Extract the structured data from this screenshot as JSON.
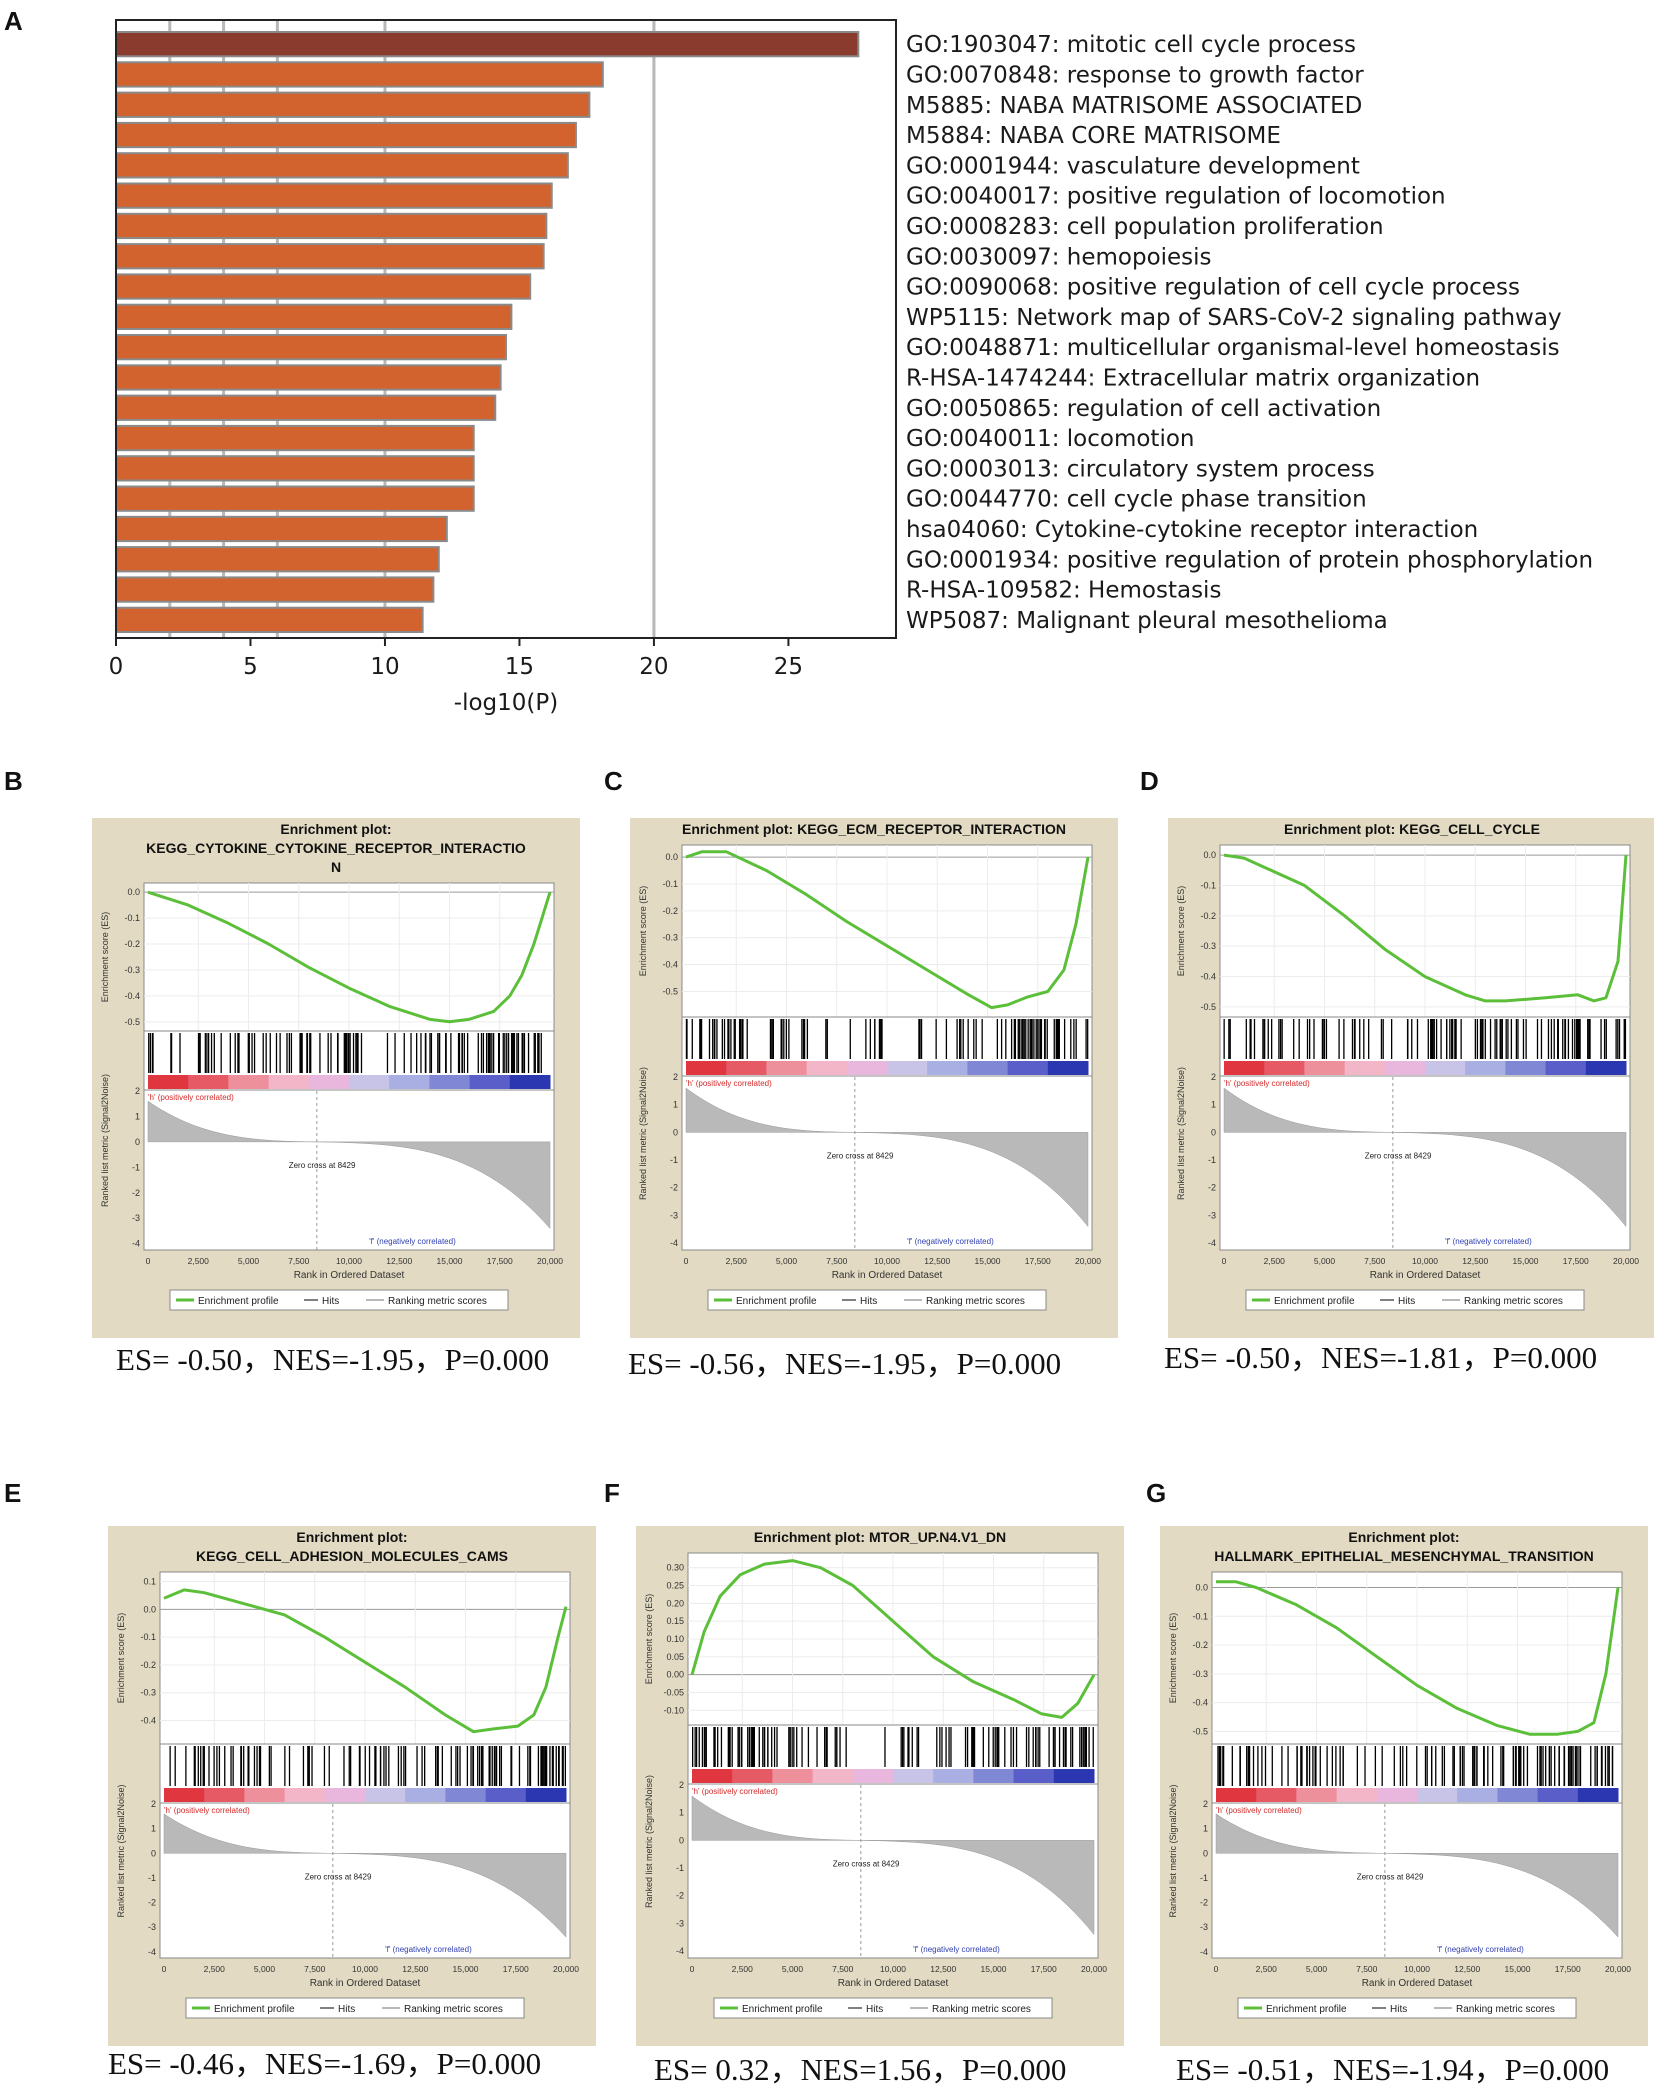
{
  "chart_data": [
    {
      "panel": "A",
      "type": "bar",
      "orientation": "horizontal",
      "xlabel": "-log10(P)",
      "xlim": [
        0,
        29
      ],
      "xticks": [
        0,
        5,
        10,
        15,
        20,
        25
      ],
      "grid_lines": [
        2,
        4,
        6,
        10,
        20
      ],
      "categories": [
        "GO:1903047: mitotic cell cycle process",
        "GO:0070848: response to growth factor",
        "M5885: NABA MATRISOME ASSOCIATED",
        "M5884: NABA CORE MATRISOME",
        "GO:0001944: vasculature development",
        "GO:0040017: positive regulation of locomotion",
        "GO:0008283: cell population proliferation",
        "GO:0030097: hemopoiesis",
        "GO:0090068: positive regulation of cell cycle process",
        "WP5115: Network map of SARS-CoV-2 signaling pathway",
        "GO:0048871: multicellular organismal-level homeostasis",
        "R-HSA-1474244: Extracellular matrix organization",
        "GO:0050865: regulation of cell activation",
        "GO:0040011: locomotion",
        "GO:0003013: circulatory system process",
        "GO:0044770: cell cycle phase transition",
        "hsa04060: Cytokine-cytokine receptor interaction",
        "GO:0001934: positive regulation of protein phosphorylation",
        "R-HSA-109582: Hemostasis",
        "WP5087: Malignant pleural mesothelioma"
      ],
      "values": [
        27.6,
        18.1,
        17.6,
        17.1,
        16.8,
        16.2,
        16.0,
        15.9,
        15.4,
        14.7,
        14.5,
        14.3,
        14.1,
        13.3,
        13.3,
        13.3,
        12.3,
        12.0,
        11.8,
        11.4
      ],
      "colors": {
        "top": "#8b3a2e",
        "rest": "#d2622e",
        "grid": "#b8b8b8"
      }
    },
    {
      "panel": "B",
      "type": "line",
      "title_line1": "Enrichment plot:",
      "title_line2": "KEGG_CYTOKINE_CYTOKINE_RECEPTOR_INTERACTIO",
      "title_line3": "N",
      "ylabel": "Enrichment score (ES)",
      "yticks": [
        "0.0",
        "-0.1",
        "-0.2",
        "-0.3",
        "-0.4",
        "-0.5"
      ],
      "ylim": [
        -0.52,
        0.02
      ],
      "es_curve": {
        "x": [
          0,
          0.1,
          0.2,
          0.3,
          0.4,
          0.5,
          0.6,
          0.7,
          0.75,
          0.8,
          0.86,
          0.9,
          0.93,
          0.96,
          0.98,
          1.0
        ],
        "y": [
          0.0,
          -0.05,
          -0.12,
          -0.2,
          -0.29,
          -0.37,
          -0.44,
          -0.49,
          -0.5,
          -0.49,
          -0.46,
          -0.4,
          -0.32,
          -0.2,
          -0.1,
          0.0
        ]
      },
      "hit_density": [
        0.3,
        0.7,
        0.5,
        0.8,
        0.4,
        0.6,
        0.9,
        1.0
      ],
      "pos_label": "'h' (positively correlated)",
      "neg_label": "'f' (negatively correlated)",
      "zero_cross": "Zero cross at 8429",
      "metric_ylabel": "Ranked list metric (Signal2Noise)",
      "metric_yticks": [
        "2",
        "1",
        "0",
        "-1",
        "-2",
        "-3",
        "-4"
      ],
      "xlabel": "Rank in Ordered Dataset",
      "xticks": [
        "0",
        "2,500",
        "5,000",
        "7,500",
        "10,000",
        "12,500",
        "15,000",
        "17,500",
        "20,000"
      ],
      "legend": [
        "Enrichment profile",
        "Hits",
        "Ranking metric scores"
      ],
      "stats": "ES= -0.50，NES=-1.95，P=0.000"
    },
    {
      "panel": "C",
      "type": "line",
      "title_line1": "Enrichment plot: KEGG_ECM_RECEPTOR_INTERACTION",
      "title_line2": "",
      "title_line3": "",
      "ylabel": "Enrichment score (ES)",
      "yticks": [
        "0.0",
        "-0.1",
        "-0.2",
        "-0.3",
        "-0.4",
        "-0.5"
      ],
      "ylim": [
        -0.58,
        0.03
      ],
      "es_curve": {
        "x": [
          0,
          0.04,
          0.1,
          0.2,
          0.3,
          0.4,
          0.5,
          0.6,
          0.7,
          0.76,
          0.8,
          0.85,
          0.9,
          0.94,
          0.97,
          1.0
        ],
        "y": [
          0.0,
          0.02,
          0.02,
          -0.05,
          -0.14,
          -0.24,
          -0.33,
          -0.42,
          -0.51,
          -0.56,
          -0.55,
          -0.52,
          -0.5,
          -0.42,
          -0.25,
          0.0
        ]
      },
      "hit_density": [
        0.8,
        0.6,
        0.3,
        0.5,
        0.2,
        0.4,
        0.9,
        1.0
      ],
      "pos_label": "'h' (positively correlated)",
      "neg_label": "'f' (negatively correlated)",
      "zero_cross": "Zero cross at 8429",
      "metric_ylabel": "Ranked list metric (Signal2Noise)",
      "metric_yticks": [
        "2",
        "1",
        "0",
        "-1",
        "-2",
        "-3",
        "-4"
      ],
      "xlabel": "Rank in Ordered Dataset",
      "xticks": [
        "0",
        "2,500",
        "5,000",
        "7,500",
        "10,000",
        "12,500",
        "15,000",
        "17,500",
        "20,000"
      ],
      "legend": [
        "Enrichment profile",
        "Hits",
        "Ranking metric scores"
      ],
      "stats": "ES= -0.56，NES=-1.95，P=0.000"
    },
    {
      "panel": "D",
      "type": "line",
      "title_line1": "Enrichment plot: KEGG_CELL_CYCLE",
      "title_line2": "",
      "title_line3": "",
      "ylabel": "Enrichment score (ES)",
      "yticks": [
        "0.0",
        "-0.1",
        "-0.2",
        "-0.3",
        "-0.4",
        "-0.5"
      ],
      "ylim": [
        -0.52,
        0.02
      ],
      "es_curve": {
        "x": [
          0,
          0.05,
          0.1,
          0.2,
          0.3,
          0.4,
          0.5,
          0.6,
          0.65,
          0.7,
          0.8,
          0.88,
          0.92,
          0.95,
          0.98,
          1.0
        ],
        "y": [
          0.0,
          -0.01,
          -0.04,
          -0.1,
          -0.2,
          -0.31,
          -0.4,
          -0.46,
          -0.48,
          -0.48,
          -0.47,
          -0.46,
          -0.48,
          -0.47,
          -0.35,
          0.0
        ]
      },
      "hit_density": [
        0.6,
        0.5,
        0.4,
        0.3,
        0.8,
        0.9,
        0.7,
        0.8
      ],
      "pos_label": "'h' (positively correlated)",
      "neg_label": "'f' (negatively correlated)",
      "zero_cross": "Zero cross at 8429",
      "metric_ylabel": "Ranked list metric (Signal2Noise)",
      "metric_yticks": [
        "2",
        "1",
        "0",
        "-1",
        "-2",
        "-3",
        "-4"
      ],
      "xlabel": "Rank in Ordered Dataset",
      "xticks": [
        "0",
        "2,500",
        "5,000",
        "7,500",
        "10,000",
        "12,500",
        "15,000",
        "17,500",
        "20,000"
      ],
      "legend": [
        "Enrichment profile",
        "Hits",
        "Ranking metric scores"
      ],
      "stats": "ES= -0.50，NES=-1.81，P=0.000"
    },
    {
      "panel": "E",
      "type": "line",
      "title_line1": "Enrichment plot:",
      "title_line2": "KEGG_CELL_ADHESION_MOLECULES_CAMS",
      "title_line3": "",
      "ylabel": "Enrichment score (ES)",
      "yticks": [
        "0.1",
        "0.0",
        "-0.1",
        "-0.2",
        "-0.3",
        "-0.4"
      ],
      "ylim": [
        -0.47,
        0.12
      ],
      "es_curve": {
        "x": [
          0,
          0.05,
          0.1,
          0.2,
          0.3,
          0.4,
          0.5,
          0.6,
          0.7,
          0.77,
          0.82,
          0.88,
          0.92,
          0.95,
          0.98,
          1.0
        ],
        "y": [
          0.04,
          0.07,
          0.06,
          0.02,
          -0.02,
          -0.1,
          -0.19,
          -0.28,
          -0.38,
          -0.44,
          -0.43,
          -0.42,
          -0.38,
          -0.28,
          -0.1,
          0.01
        ]
      },
      "hit_density": [
        0.5,
        0.7,
        0.4,
        0.3,
        0.6,
        0.5,
        0.9,
        1.0
      ],
      "pos_label": "'h' (positively correlated)",
      "neg_label": "'f' (negatively correlated)",
      "zero_cross": "Zero cross at 8429",
      "metric_ylabel": "Ranked list metric (Signal2Noise)",
      "metric_yticks": [
        "2",
        "1",
        "0",
        "-1",
        "-2",
        "-3",
        "-4"
      ],
      "xlabel": "Rank in Ordered Dataset",
      "xticks": [
        "0",
        "2,500",
        "5,000",
        "7,500",
        "10,000",
        "12,500",
        "15,000",
        "17,500",
        "20,000"
      ],
      "legend": [
        "Enrichment profile",
        "Hits",
        "Ranking metric scores"
      ],
      "stats": "ES= -0.46，NES=-1.69，P=0.000"
    },
    {
      "panel": "F",
      "type": "line",
      "title_line1": "Enrichment plot: MTOR_UP.N4.V1_DN",
      "title_line2": "",
      "title_line3": "",
      "ylabel": "Enrichment score (ES)",
      "yticks": [
        "0.30",
        "0.25",
        "0.20",
        "0.15",
        "0.10",
        "0.05",
        "0.00",
        "-0.05",
        "-0.10"
      ],
      "ylim": [
        -0.13,
        0.33
      ],
      "es_curve": {
        "x": [
          0,
          0.03,
          0.07,
          0.12,
          0.18,
          0.25,
          0.32,
          0.4,
          0.5,
          0.6,
          0.7,
          0.8,
          0.87,
          0.92,
          0.96,
          1.0
        ],
        "y": [
          0.0,
          0.12,
          0.22,
          0.28,
          0.31,
          0.32,
          0.3,
          0.25,
          0.15,
          0.05,
          -0.02,
          -0.07,
          -0.11,
          -0.12,
          -0.08,
          0.0
        ]
      },
      "hit_density": [
        1.0,
        0.9,
        0.6,
        0.1,
        0.5,
        0.6,
        0.7,
        0.8
      ],
      "pos_label": "'h' (positively correlated)",
      "neg_label": "'f' (negatively correlated)",
      "zero_cross": "Zero cross at 8429",
      "metric_ylabel": "Ranked list metric (Signal2Noise)",
      "metric_yticks": [
        "2",
        "1",
        "0",
        "-1",
        "-2",
        "-3",
        "-4"
      ],
      "xlabel": "Rank in Ordered Dataset",
      "xticks": [
        "0",
        "2,500",
        "5,000",
        "7,500",
        "10,000",
        "12,500",
        "15,000",
        "17,500",
        "20,000"
      ],
      "legend": [
        "Enrichment profile",
        "Hits",
        "Ranking metric scores"
      ],
      "stats": "ES= 0.32，NES=1.56，P=0.000"
    },
    {
      "panel": "G",
      "type": "line",
      "title_line1": "Enrichment plot:",
      "title_line2": "HALLMARK_EPITHELIAL_MESENCHYMAL_TRANSITION",
      "title_line3": "",
      "ylabel": "Enrichment score (ES)",
      "yticks": [
        "0.0",
        "-0.1",
        "-0.2",
        "-0.3",
        "-0.4",
        "-0.5"
      ],
      "ylim": [
        -0.53,
        0.04
      ],
      "es_curve": {
        "x": [
          0,
          0.05,
          0.1,
          0.2,
          0.3,
          0.4,
          0.5,
          0.6,
          0.7,
          0.78,
          0.85,
          0.9,
          0.94,
          0.97,
          0.99,
          1.0
        ],
        "y": [
          0.02,
          0.02,
          0.0,
          -0.06,
          -0.14,
          -0.24,
          -0.34,
          -0.42,
          -0.48,
          -0.51,
          -0.51,
          -0.5,
          -0.47,
          -0.3,
          -0.1,
          0.0
        ]
      },
      "hit_density": [
        0.7,
        0.6,
        0.4,
        0.3,
        0.6,
        0.8,
        0.9,
        1.0
      ],
      "pos_label": "'h' (positively correlated)",
      "neg_label": "'f' (negatively correlated)",
      "zero_cross": "Zero cross at 8429",
      "metric_ylabel": "Ranked list metric (Signal2Noise)",
      "metric_yticks": [
        "2",
        "1",
        "0",
        "-1",
        "-2",
        "-3",
        "-4"
      ],
      "xlabel": "Rank in Ordered Dataset",
      "xticks": [
        "0",
        "2,500",
        "5,000",
        "7,500",
        "10,000",
        "12,500",
        "15,000",
        "17,500",
        "20,000"
      ],
      "legend": [
        "Enrichment profile",
        "Hits",
        "Ranking metric scores"
      ],
      "stats": "ES= -0.51，NES=-1.94，P=0.000"
    }
  ],
  "panel_letters": {
    "A": "A",
    "B": "B",
    "C": "C",
    "D": "D",
    "E": "E",
    "F": "F",
    "G": "G"
  }
}
